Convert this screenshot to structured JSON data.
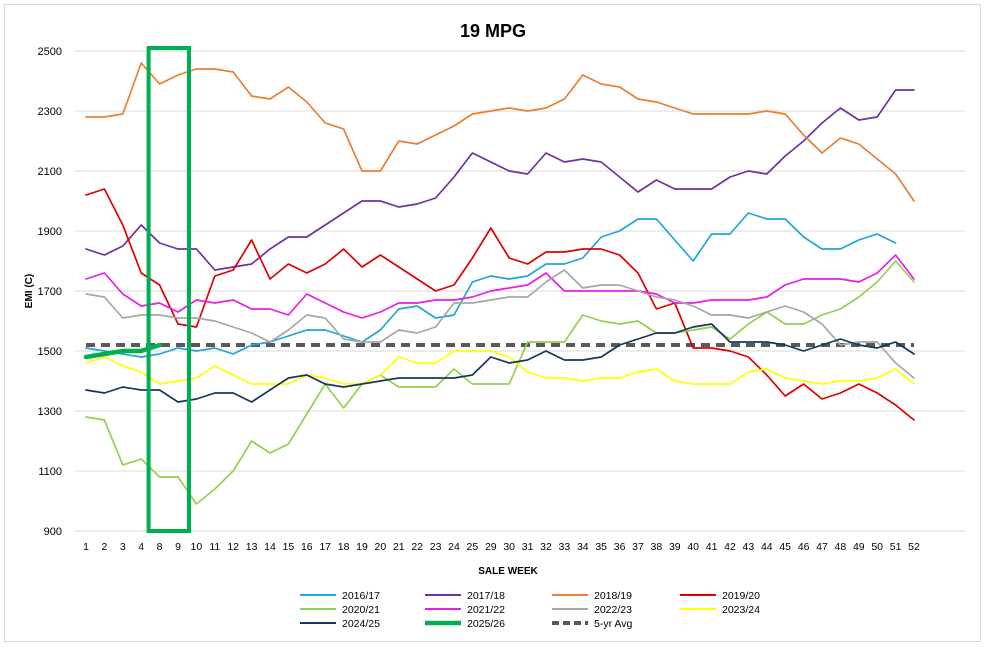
{
  "chart_data": {
    "type": "line",
    "title": "19 MPG",
    "xlabel": "SALE WEEK",
    "ylabel": "EMI (C)",
    "ylim": [
      900,
      2500
    ],
    "yticks": [
      900,
      1100,
      1300,
      1500,
      1700,
      1900,
      2100,
      2300,
      2500
    ],
    "categories": [
      "1",
      "2",
      "3",
      "4",
      "8",
      "9",
      "10",
      "11",
      "12",
      "13",
      "14",
      "15",
      "16",
      "17",
      "18",
      "19",
      "20",
      "21",
      "22",
      "23",
      "24",
      "25",
      "29",
      "30",
      "31",
      "32",
      "33",
      "34",
      "35",
      "36",
      "37",
      "38",
      "39",
      "40",
      "41",
      "42",
      "43",
      "44",
      "45",
      "46",
      "47",
      "48",
      "49",
      "50",
      "51",
      "52"
    ],
    "grid": "horizontal",
    "legend_position": "bottom",
    "highlight": {
      "from": "8",
      "to": "9",
      "color": "#00b050"
    },
    "series": [
      {
        "name": "2016/17",
        "color": "#1fa6d8",
        "width": 1.7,
        "dash": "",
        "values": [
          1510,
          1500,
          1490,
          1480,
          1490,
          1510,
          1500,
          1510,
          1490,
          1520,
          1530,
          1550,
          1570,
          1570,
          1550,
          1530,
          1570,
          1640,
          1650,
          1610,
          1620,
          1730,
          1750,
          1740,
          1750,
          1790,
          1790,
          1810,
          1880,
          1900,
          1940,
          1940,
          1870,
          1800,
          1890,
          1890,
          1960,
          1940,
          1940,
          1880,
          1840,
          1840,
          1870,
          1890,
          1860,
          null
        ]
      },
      {
        "name": "2017/18",
        "color": "#7030a0",
        "width": 1.7,
        "dash": "",
        "values": [
          1840,
          1820,
          1850,
          1920,
          1860,
          1840,
          1840,
          1770,
          1780,
          1790,
          1840,
          1880,
          1880,
          1920,
          1960,
          2000,
          2000,
          1980,
          1990,
          2010,
          2080,
          2160,
          2130,
          2100,
          2090,
          2160,
          2130,
          2140,
          2130,
          2080,
          2030,
          2070,
          2040,
          2040,
          2040,
          2080,
          2100,
          2090,
          2150,
          2200,
          2260,
          2310,
          2270,
          2280,
          2370,
          2370
        ]
      },
      {
        "name": "2018/19",
        "color": "#ed7d31",
        "width": 1.7,
        "dash": "",
        "values": [
          2280,
          2280,
          2290,
          2460,
          2390,
          2420,
          2440,
          2440,
          2430,
          2350,
          2340,
          2380,
          2330,
          2260,
          2240,
          2100,
          2100,
          2200,
          2190,
          2220,
          2250,
          2290,
          2300,
          2310,
          2300,
          2310,
          2340,
          2420,
          2390,
          2380,
          2340,
          2330,
          2310,
          2290,
          2290,
          2290,
          2290,
          2300,
          2290,
          2220,
          2160,
          2210,
          2190,
          2140,
          2090,
          2000
        ]
      },
      {
        "name": "2019/20",
        "color": "#e00000",
        "width": 1.7,
        "dash": "",
        "values": [
          2020,
          2040,
          1920,
          1760,
          1720,
          1590,
          1580,
          1750,
          1770,
          1870,
          1740,
          1790,
          1760,
          1790,
          1840,
          1780,
          1820,
          1780,
          1740,
          1700,
          1720,
          1810,
          1910,
          1810,
          1790,
          1830,
          1830,
          1840,
          1840,
          1820,
          1760,
          1640,
          1660,
          1510,
          1510,
          1500,
          1480,
          1420,
          1350,
          1390,
          1340,
          1360,
          1390,
          1360,
          1320,
          1270
        ]
      },
      {
        "name": "2020/21",
        "color": "#92d050",
        "width": 1.7,
        "dash": "",
        "values": [
          1280,
          1270,
          1120,
          1140,
          1080,
          1080,
          990,
          1040,
          1100,
          1200,
          1160,
          1190,
          1290,
          1390,
          1310,
          1390,
          1420,
          1380,
          1380,
          1380,
          1440,
          1390,
          1390,
          1390,
          1530,
          1530,
          1530,
          1620,
          1600,
          1590,
          1600,
          1560,
          1560,
          1570,
          1580,
          1540,
          1590,
          1630,
          1590,
          1590,
          1620,
          1640,
          1680,
          1730,
          1800,
          1730
        ]
      },
      {
        "name": "2021/22",
        "color": "#e61ee6",
        "width": 1.7,
        "dash": "",
        "values": [
          1740,
          1760,
          1690,
          1650,
          1660,
          1630,
          1670,
          1660,
          1670,
          1640,
          1640,
          1620,
          1690,
          1660,
          1630,
          1610,
          1630,
          1660,
          1660,
          1670,
          1670,
          1680,
          1700,
          1710,
          1720,
          1760,
          1700,
          1700,
          1700,
          1700,
          1700,
          1690,
          1660,
          1660,
          1670,
          1670,
          1670,
          1680,
          1720,
          1740,
          1740,
          1740,
          1730,
          1760,
          1820,
          1740
        ]
      },
      {
        "name": "2022/23",
        "color": "#a6a6a6",
        "width": 1.7,
        "dash": "",
        "values": [
          1690,
          1680,
          1610,
          1620,
          1620,
          1610,
          1610,
          1600,
          1580,
          1560,
          1530,
          1570,
          1620,
          1610,
          1540,
          1530,
          1530,
          1570,
          1560,
          1580,
          1660,
          1660,
          1670,
          1680,
          1680,
          1730,
          1770,
          1710,
          1720,
          1720,
          1700,
          1680,
          1670,
          1650,
          1620,
          1620,
          1610,
          1630,
          1650,
          1630,
          1590,
          1520,
          1530,
          1530,
          1460,
          1410
        ]
      },
      {
        "name": "2023/24",
        "color": "#ffff00",
        "width": 1.7,
        "dash": "",
        "values": [
          1460,
          1480,
          1450,
          1430,
          1390,
          1400,
          1410,
          1450,
          1420,
          1390,
          1390,
          1390,
          1420,
          1410,
          1390,
          1390,
          1420,
          1480,
          1460,
          1460,
          1500,
          1500,
          1500,
          1480,
          1430,
          1410,
          1410,
          1400,
          1410,
          1410,
          1430,
          1440,
          1400,
          1390,
          1390,
          1390,
          1430,
          1440,
          1410,
          1400,
          1390,
          1400,
          1400,
          1410,
          1440,
          1390
        ]
      },
      {
        "name": "2024/25",
        "color": "#17375e",
        "width": 1.7,
        "dash": "",
        "values": [
          1370,
          1360,
          1380,
          1370,
          1370,
          1330,
          1340,
          1360,
          1360,
          1330,
          1370,
          1410,
          1420,
          1390,
          1380,
          1390,
          1400,
          1410,
          1410,
          1410,
          1410,
          1420,
          1480,
          1460,
          1470,
          1500,
          1470,
          1470,
          1480,
          1520,
          1540,
          1560,
          1560,
          1580,
          1590,
          1530,
          1530,
          1530,
          1520,
          1500,
          1520,
          1540,
          1520,
          1510,
          1530,
          1490
        ]
      },
      {
        "name": "2025/26",
        "color": "#00b050",
        "width": 4.5,
        "dash": "",
        "values": [
          1480,
          1490,
          1500,
          1500,
          1520,
          null,
          null,
          null,
          null,
          null,
          null,
          null,
          null,
          null,
          null,
          null,
          null,
          null,
          null,
          null,
          null,
          null,
          null,
          null,
          null,
          null,
          null,
          null,
          null,
          null,
          null,
          null,
          null,
          null,
          null,
          null,
          null,
          null,
          null,
          null,
          null,
          null,
          null,
          null,
          null,
          null
        ]
      },
      {
        "name": "5-yr Avg",
        "color": "#595959",
        "width": 4,
        "dash": "9,6",
        "values": [
          1520,
          1520,
          1520,
          1520,
          1520,
          1520,
          1520,
          1520,
          1520,
          1520,
          1520,
          1520,
          1520,
          1520,
          1520,
          1520,
          1520,
          1520,
          1520,
          1520,
          1520,
          1520,
          1520,
          1520,
          1520,
          1520,
          1520,
          1520,
          1520,
          1520,
          1520,
          1520,
          1520,
          1520,
          1520,
          1520,
          1520,
          1520,
          1520,
          1520,
          1520,
          1520,
          1520,
          1520,
          1520,
          1520
        ]
      }
    ]
  }
}
